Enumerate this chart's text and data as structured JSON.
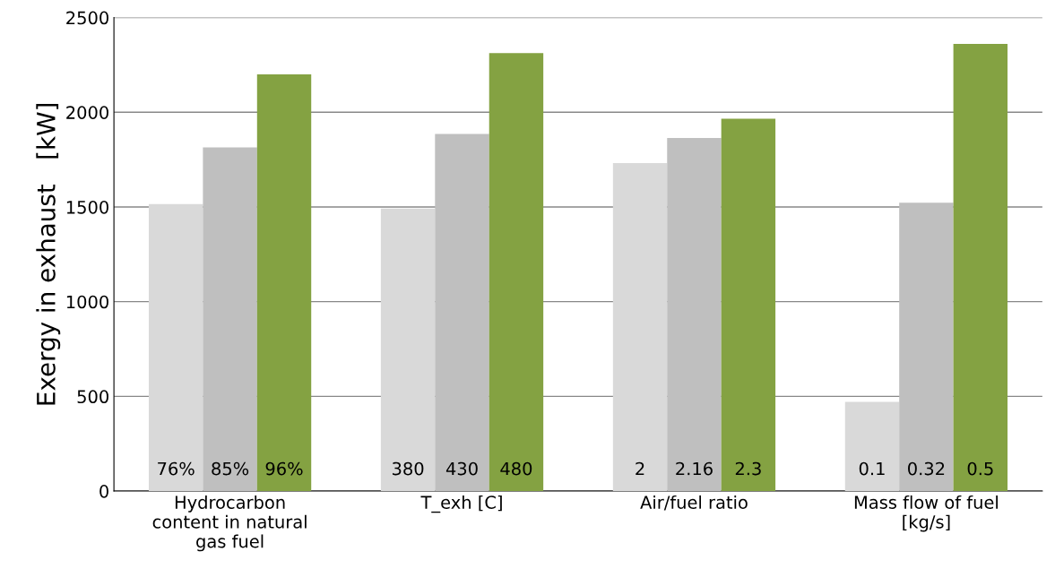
{
  "chart_data": {
    "type": "bar",
    "ylabel": "Exergy in exhaust   [kW]",
    "categories": [
      "Hydrocarbon\ncontent in natural\ngas fuel",
      "T_exh [C]",
      "Air/fuel ratio",
      "Mass flow of fuel\n[kg/s]"
    ],
    "series": [
      {
        "color": "#d9d9d9",
        "values": [
          1515,
          1492,
          1732,
          471
        ]
      },
      {
        "color": "#bfbfbf",
        "values": [
          1815,
          1886,
          1864,
          1522
        ]
      },
      {
        "color": "#84a242",
        "values": [
          2200,
          2312,
          1966,
          2361
        ]
      }
    ],
    "annotations": [
      "76%",
      "85%",
      "96%",
      "380",
      "430",
      "480",
      "2",
      "2.16",
      "2.3",
      "0.1",
      "0.32",
      "0.5"
    ],
    "ylim": [
      0,
      2500
    ],
    "yticks": [
      0,
      500,
      1000,
      1500,
      2000,
      2500
    ],
    "grid": "y"
  }
}
